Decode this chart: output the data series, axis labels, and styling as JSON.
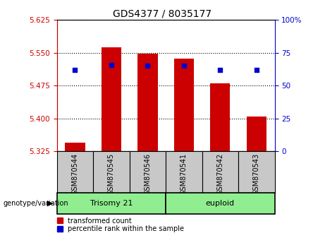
{
  "title": "GDS4377 / 8035177",
  "samples": [
    "GSM870544",
    "GSM870545",
    "GSM870546",
    "GSM870541",
    "GSM870542",
    "GSM870543"
  ],
  "group_labels": [
    "Trisomy 21",
    "euploid"
  ],
  "bar_values": [
    5.345,
    5.562,
    5.548,
    5.537,
    5.48,
    5.405
  ],
  "bar_base": 5.325,
  "dot_percentiles": [
    62,
    66,
    65,
    65,
    62,
    62
  ],
  "ylim_left": [
    5.325,
    5.625
  ],
  "ylim_right": [
    0,
    100
  ],
  "yticks_left": [
    5.325,
    5.4,
    5.475,
    5.55,
    5.625
  ],
  "yticks_right": [
    0,
    25,
    50,
    75,
    100
  ],
  "bar_color": "#CC0000",
  "dot_color": "#0000CC",
  "axis_left_color": "#CC0000",
  "axis_right_color": "#0000CC",
  "sample_bg": "#C8C8C8",
  "group1_color": "#90EE90",
  "group2_color": "#90EE90",
  "legend_red_label": "transformed count",
  "legend_blue_label": "percentile rank within the sample",
  "genotype_label": "genotype/variation"
}
